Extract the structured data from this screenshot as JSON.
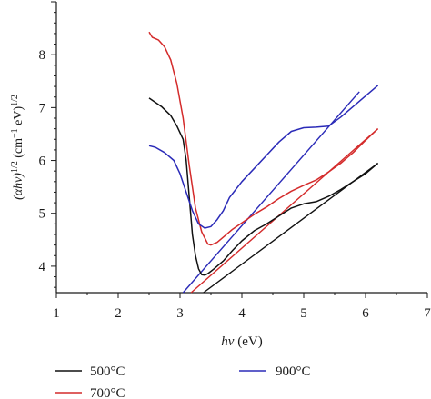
{
  "chart_data": {
    "type": "line",
    "title": "",
    "xlabel_main": "hv",
    "xlabel_unit": " (eV)",
    "ylabel_main": "(αhν)",
    "ylabel_unit": " (cm",
    "ylabel_unit_tail": " eV)",
    "ylabel_exp": "1/2",
    "ylabel_neg": "−1",
    "xlim": [
      1,
      7
    ],
    "ylim": [
      3.5,
      9.0
    ],
    "x_ticks": [
      1,
      2,
      3,
      4,
      5,
      6,
      7
    ],
    "y_ticks": [
      4,
      5,
      6,
      7,
      8
    ],
    "x_tick_labels": [
      "1",
      "2",
      "3",
      "4",
      "5",
      "6",
      "7"
    ],
    "y_tick_labels": [
      "4",
      "5",
      "6",
      "7",
      "8"
    ],
    "grid": false,
    "legend_position": "bottom",
    "series": [
      {
        "name": "500°C",
        "color": "#111111",
        "points": [
          [
            2.5,
            7.18
          ],
          [
            2.7,
            7.02
          ],
          [
            2.85,
            6.85
          ],
          [
            2.95,
            6.65
          ],
          [
            3.05,
            6.4
          ],
          [
            3.1,
            6.0
          ],
          [
            3.15,
            5.3
          ],
          [
            3.2,
            4.6
          ],
          [
            3.25,
            4.2
          ],
          [
            3.3,
            3.95
          ],
          [
            3.35,
            3.84
          ],
          [
            3.4,
            3.83
          ],
          [
            3.45,
            3.86
          ],
          [
            3.55,
            3.95
          ],
          [
            3.7,
            4.1
          ],
          [
            3.85,
            4.3
          ],
          [
            4.0,
            4.48
          ],
          [
            4.2,
            4.67
          ],
          [
            4.4,
            4.8
          ],
          [
            4.6,
            4.95
          ],
          [
            4.8,
            5.1
          ],
          [
            5.0,
            5.18
          ],
          [
            5.2,
            5.22
          ],
          [
            5.4,
            5.32
          ],
          [
            5.6,
            5.45
          ],
          [
            5.8,
            5.6
          ],
          [
            6.0,
            5.75
          ],
          [
            6.2,
            5.95
          ]
        ]
      },
      {
        "name": "700°C",
        "color": "#d42b2b",
        "points": [
          [
            2.5,
            8.43
          ],
          [
            2.55,
            8.33
          ],
          [
            2.65,
            8.28
          ],
          [
            2.75,
            8.15
          ],
          [
            2.85,
            7.9
          ],
          [
            2.95,
            7.45
          ],
          [
            3.05,
            6.8
          ],
          [
            3.15,
            5.9
          ],
          [
            3.25,
            5.1
          ],
          [
            3.35,
            4.65
          ],
          [
            3.45,
            4.42
          ],
          [
            3.5,
            4.4
          ],
          [
            3.6,
            4.45
          ],
          [
            3.7,
            4.55
          ],
          [
            3.85,
            4.7
          ],
          [
            4.0,
            4.82
          ],
          [
            4.2,
            4.98
          ],
          [
            4.4,
            5.12
          ],
          [
            4.6,
            5.28
          ],
          [
            4.8,
            5.42
          ],
          [
            5.0,
            5.53
          ],
          [
            5.2,
            5.63
          ],
          [
            5.4,
            5.78
          ],
          [
            5.6,
            5.95
          ],
          [
            5.8,
            6.15
          ],
          [
            6.0,
            6.38
          ],
          [
            6.2,
            6.6
          ]
        ]
      },
      {
        "name": "900°C",
        "color": "#2b2bb8",
        "points": [
          [
            2.5,
            6.28
          ],
          [
            2.6,
            6.25
          ],
          [
            2.75,
            6.15
          ],
          [
            2.9,
            6.0
          ],
          [
            3.0,
            5.75
          ],
          [
            3.1,
            5.4
          ],
          [
            3.2,
            5.05
          ],
          [
            3.3,
            4.8
          ],
          [
            3.4,
            4.72
          ],
          [
            3.5,
            4.75
          ],
          [
            3.6,
            4.88
          ],
          [
            3.7,
            5.05
          ],
          [
            3.8,
            5.3
          ],
          [
            4.0,
            5.6
          ],
          [
            4.2,
            5.85
          ],
          [
            4.4,
            6.1
          ],
          [
            4.6,
            6.35
          ],
          [
            4.8,
            6.55
          ],
          [
            5.0,
            6.62
          ],
          [
            5.2,
            6.63
          ],
          [
            5.4,
            6.65
          ],
          [
            5.6,
            6.82
          ],
          [
            5.8,
            7.02
          ],
          [
            6.0,
            7.22
          ],
          [
            6.2,
            7.42
          ]
        ]
      }
    ],
    "fit_lines": [
      {
        "color": "#111111",
        "points": [
          [
            3.38,
            3.5
          ],
          [
            6.2,
            5.95
          ]
        ]
      },
      {
        "color": "#d42b2b",
        "points": [
          [
            3.18,
            3.5
          ],
          [
            6.2,
            6.6
          ]
        ]
      },
      {
        "color": "#2b2bb8",
        "points": [
          [
            3.05,
            3.5
          ],
          [
            5.9,
            7.3
          ]
        ]
      }
    ]
  }
}
